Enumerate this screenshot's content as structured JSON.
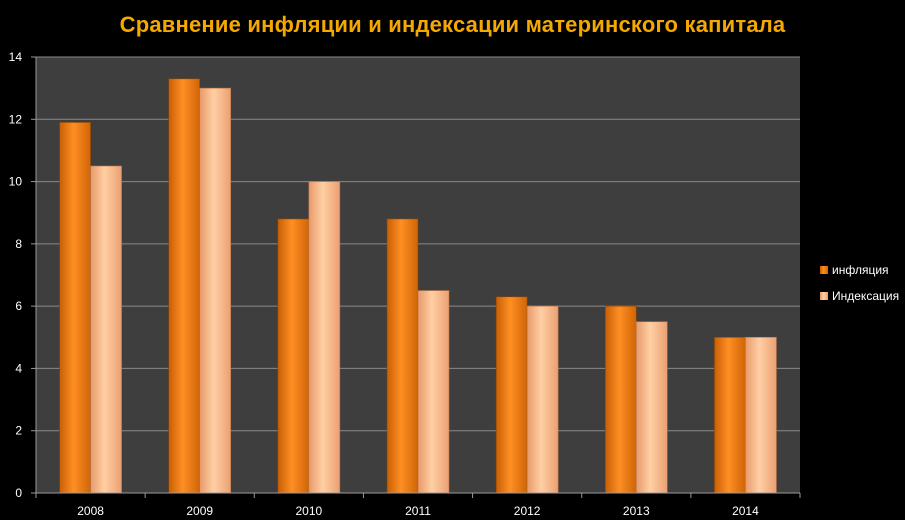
{
  "chart_data": {
    "type": "bar",
    "title": "Сравнение инфляции и индексации материнского капитала",
    "categories": [
      "2008",
      "2009",
      "2010",
      "2011",
      "2012",
      "2013",
      "2014"
    ],
    "series": [
      {
        "name": "инфляция",
        "values": [
          11.9,
          13.3,
          8.8,
          8.8,
          6.3,
          6.0,
          5.0
        ]
      },
      {
        "name": "Индексация",
        "values": [
          10.5,
          13.0,
          10.0,
          6.5,
          6.0,
          5.5,
          5.0
        ]
      }
    ],
    "ylim": [
      0,
      14
    ],
    "yticks": [
      "0",
      "2",
      "4",
      "6",
      "8",
      "10",
      "12",
      "14"
    ],
    "grid": true,
    "legend_position": "right",
    "colors": {
      "title": "#f5a800",
      "plot_background": "#3e3e3e",
      "page_background": "#000000",
      "series": [
        "#f08a1e",
        "#ffb98a"
      ]
    }
  }
}
